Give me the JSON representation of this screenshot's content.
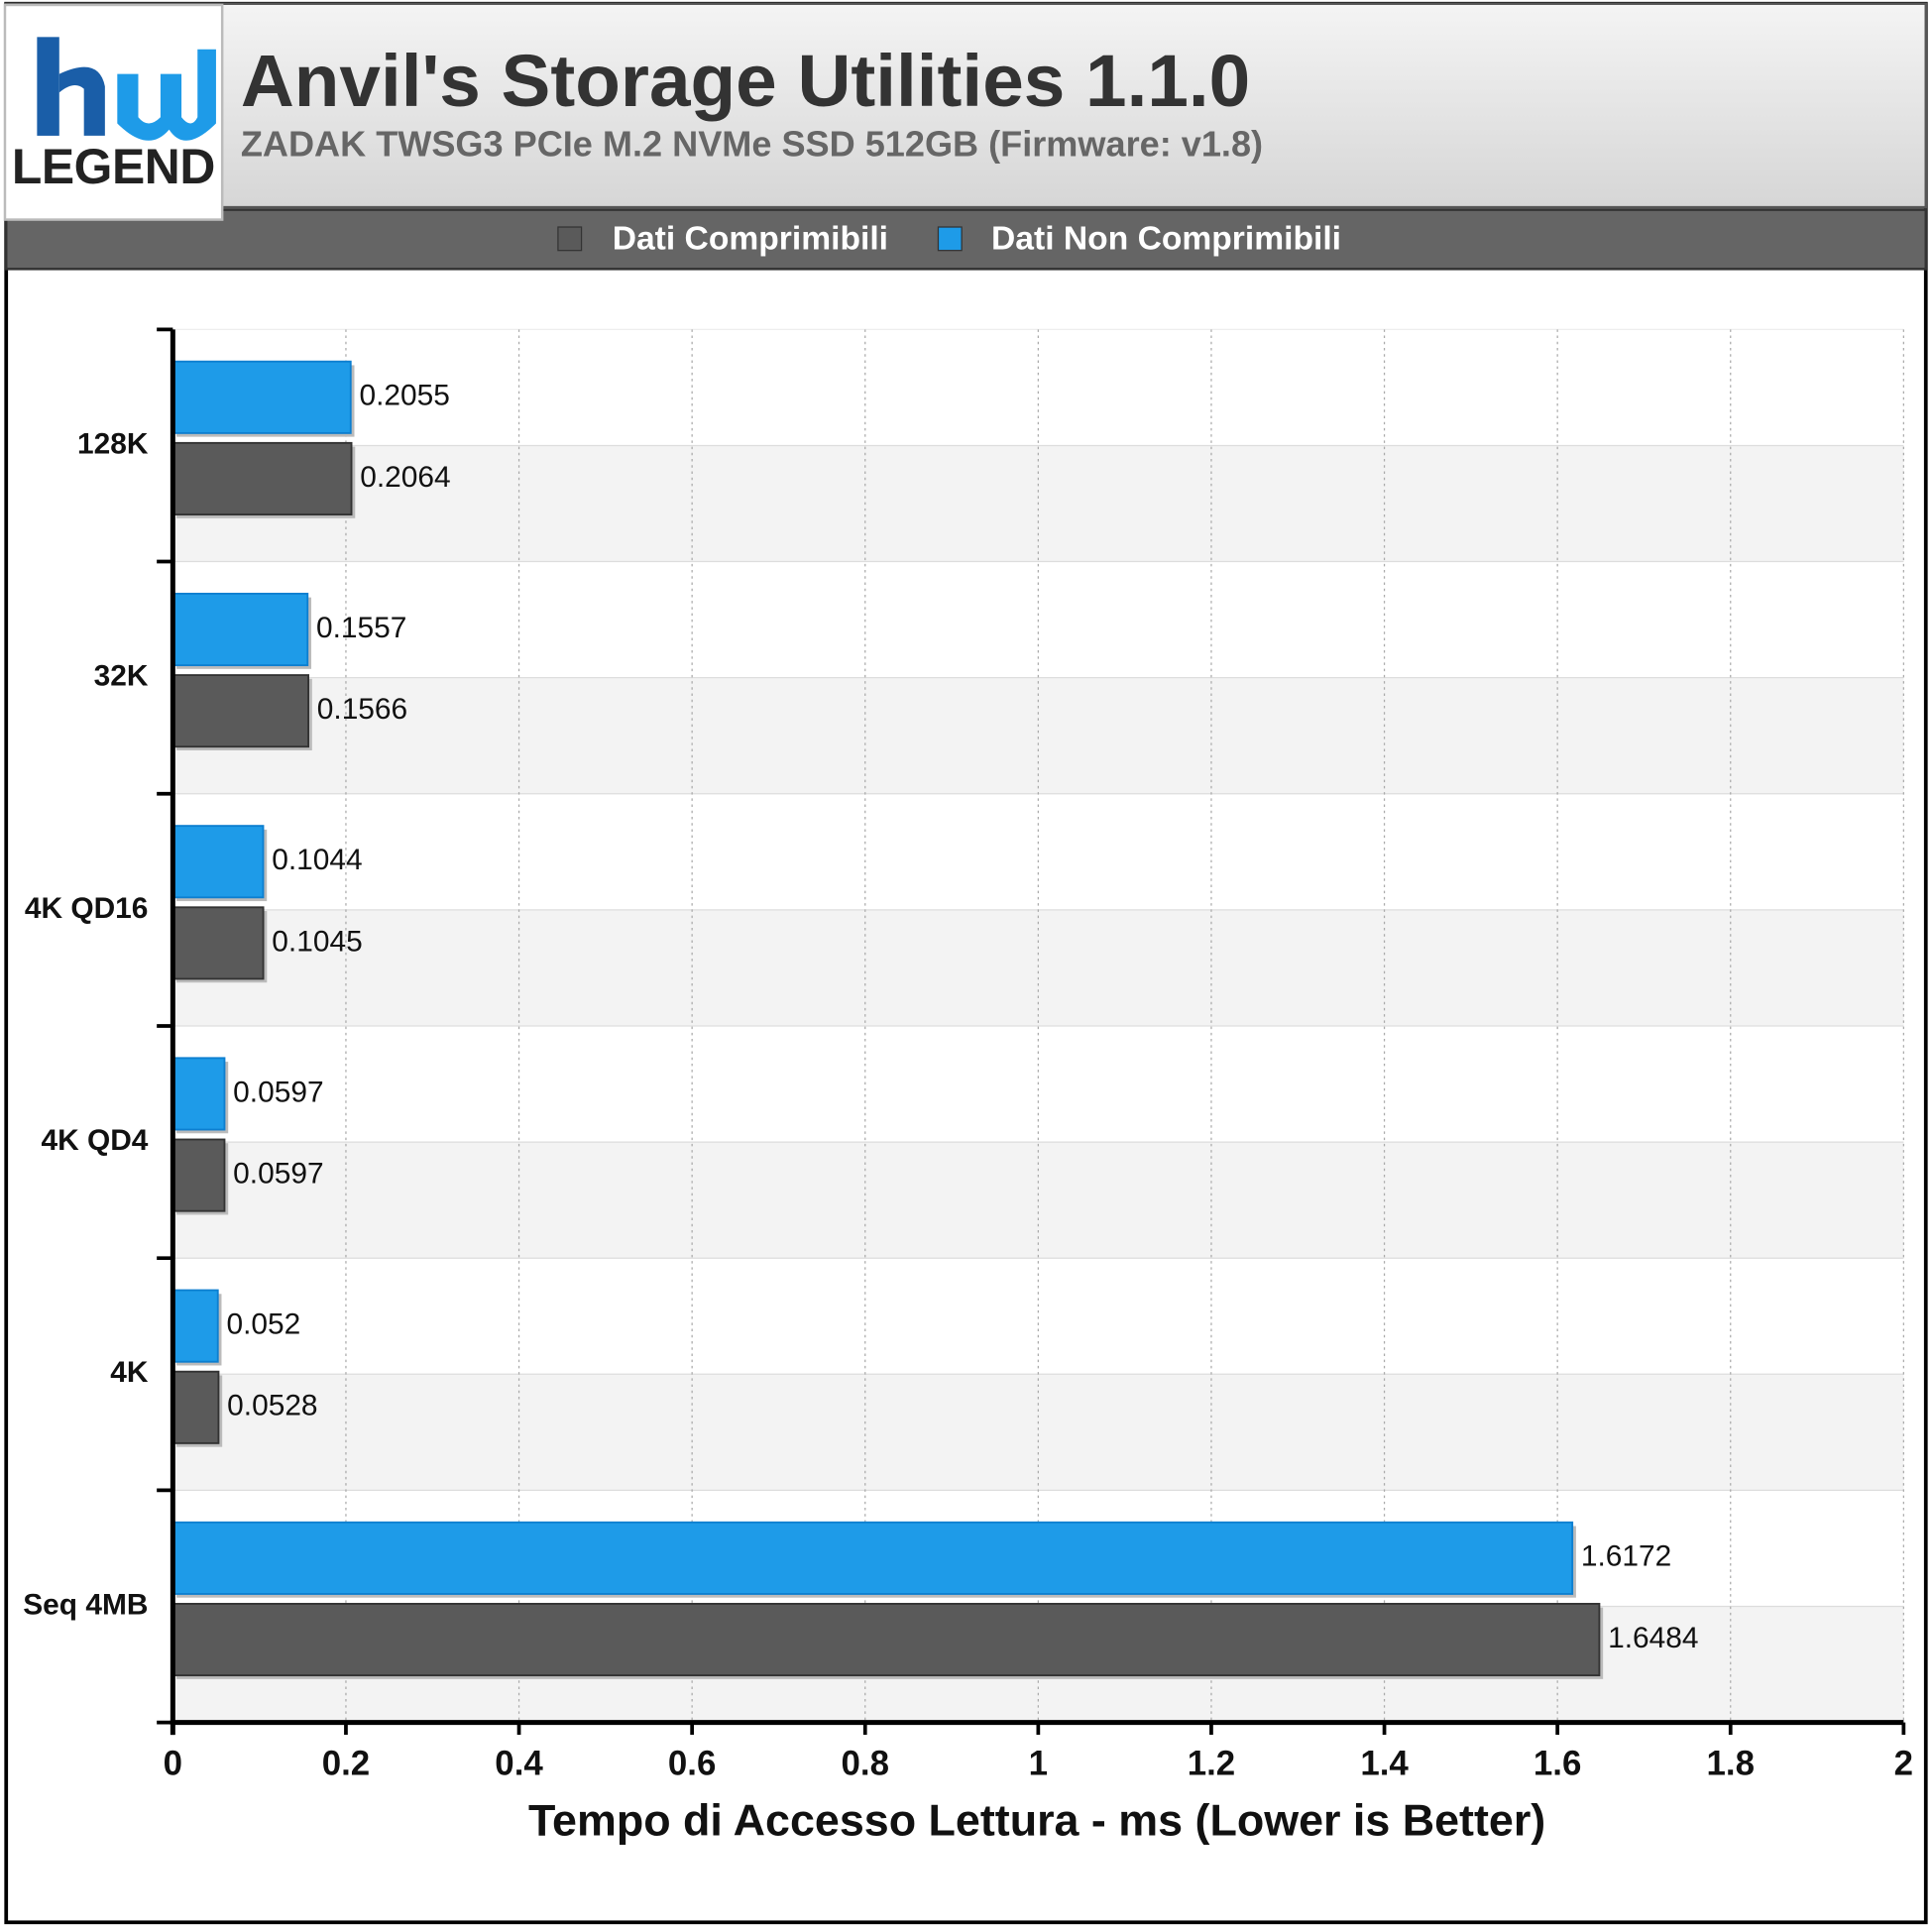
{
  "logo": "LEGEND",
  "chart_data": {
    "type": "bar",
    "orientation": "horizontal",
    "title": "Anvil's Storage Utilities 1.1.0",
    "subtitle": "ZADAK TWSG3 PCIe M.2 NVMe SSD 512GB (Firmware: v1.8)",
    "x_label": "Tempo di Accesso Lettura - ms (Lower is Better)",
    "categories": [
      "128K",
      "32K",
      "4K QD16",
      "4K QD4",
      "4K",
      "Seq 4MB"
    ],
    "series": [
      {
        "name": "Dati Comprimibili",
        "color": "#5a5a5a",
        "values": [
          0.2064,
          0.1566,
          0.1045,
          0.0597,
          0.0528,
          1.6484
        ]
      },
      {
        "name": "Dati Non Comprimibili",
        "color": "#1e9be8",
        "values": [
          0.2055,
          0.1557,
          0.1044,
          0.0597,
          0.052,
          1.6172
        ]
      }
    ],
    "xlim": [
      0,
      2
    ],
    "xticks": [
      0,
      0.2,
      0.4,
      0.6,
      0.8,
      1,
      1.2,
      1.4,
      1.6,
      1.8,
      2
    ],
    "grid": true,
    "legend": "top"
  }
}
